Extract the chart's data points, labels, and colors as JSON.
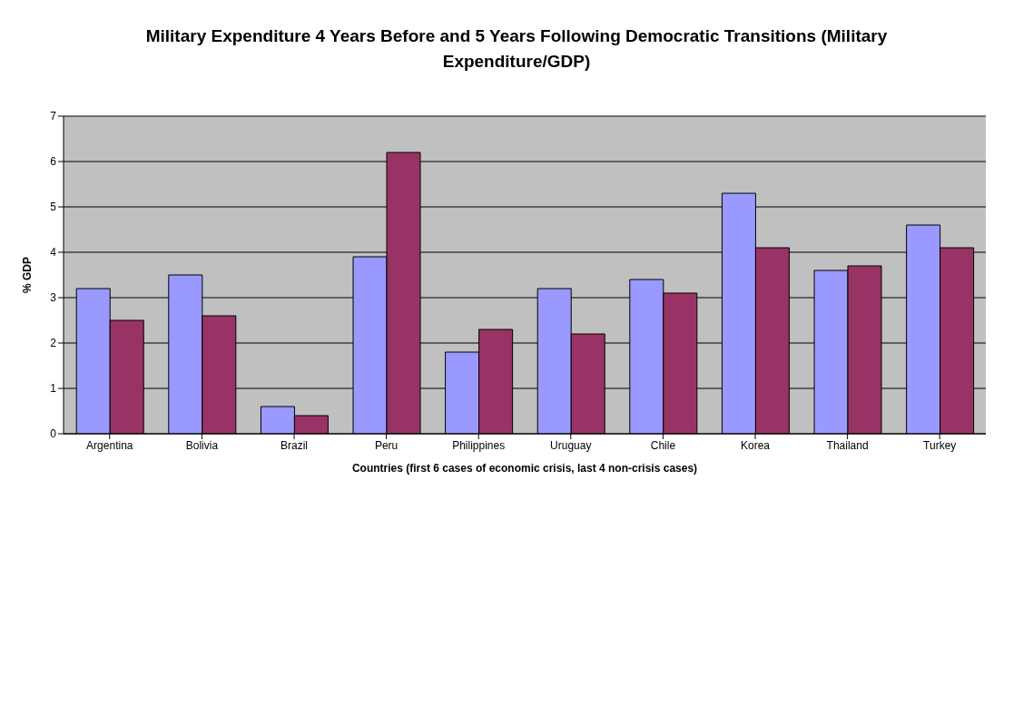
{
  "chart_data": {
    "type": "bar",
    "title": "Military Expenditure 4 Years Before and 5 Years Following Democratic Transitions (Military Expenditure/GDP)",
    "xlabel": "Countries (first 6 cases of economic crisis, last 4 non-crisis cases)",
    "ylabel": "% GDP",
    "categories": [
      "Argentina",
      "Bolivia",
      "Brazil",
      "Peru",
      "Philippines",
      "Uruguay",
      "Chile",
      "Korea",
      "Thailand",
      "Turkey"
    ],
    "series": [
      {
        "color": "#9999ff",
        "values": [
          3.2,
          3.5,
          0.6,
          3.9,
          1.8,
          3.2,
          3.4,
          5.3,
          3.6,
          4.6
        ]
      },
      {
        "color": "#993366",
        "values": [
          2.5,
          2.6,
          0.4,
          6.2,
          2.3,
          2.2,
          3.1,
          4.1,
          3.7,
          4.1
        ]
      }
    ],
    "ylim": [
      0,
      7
    ],
    "yticks": [
      0,
      1,
      2,
      3,
      4,
      5,
      6,
      7
    ],
    "grid": "y"
  }
}
